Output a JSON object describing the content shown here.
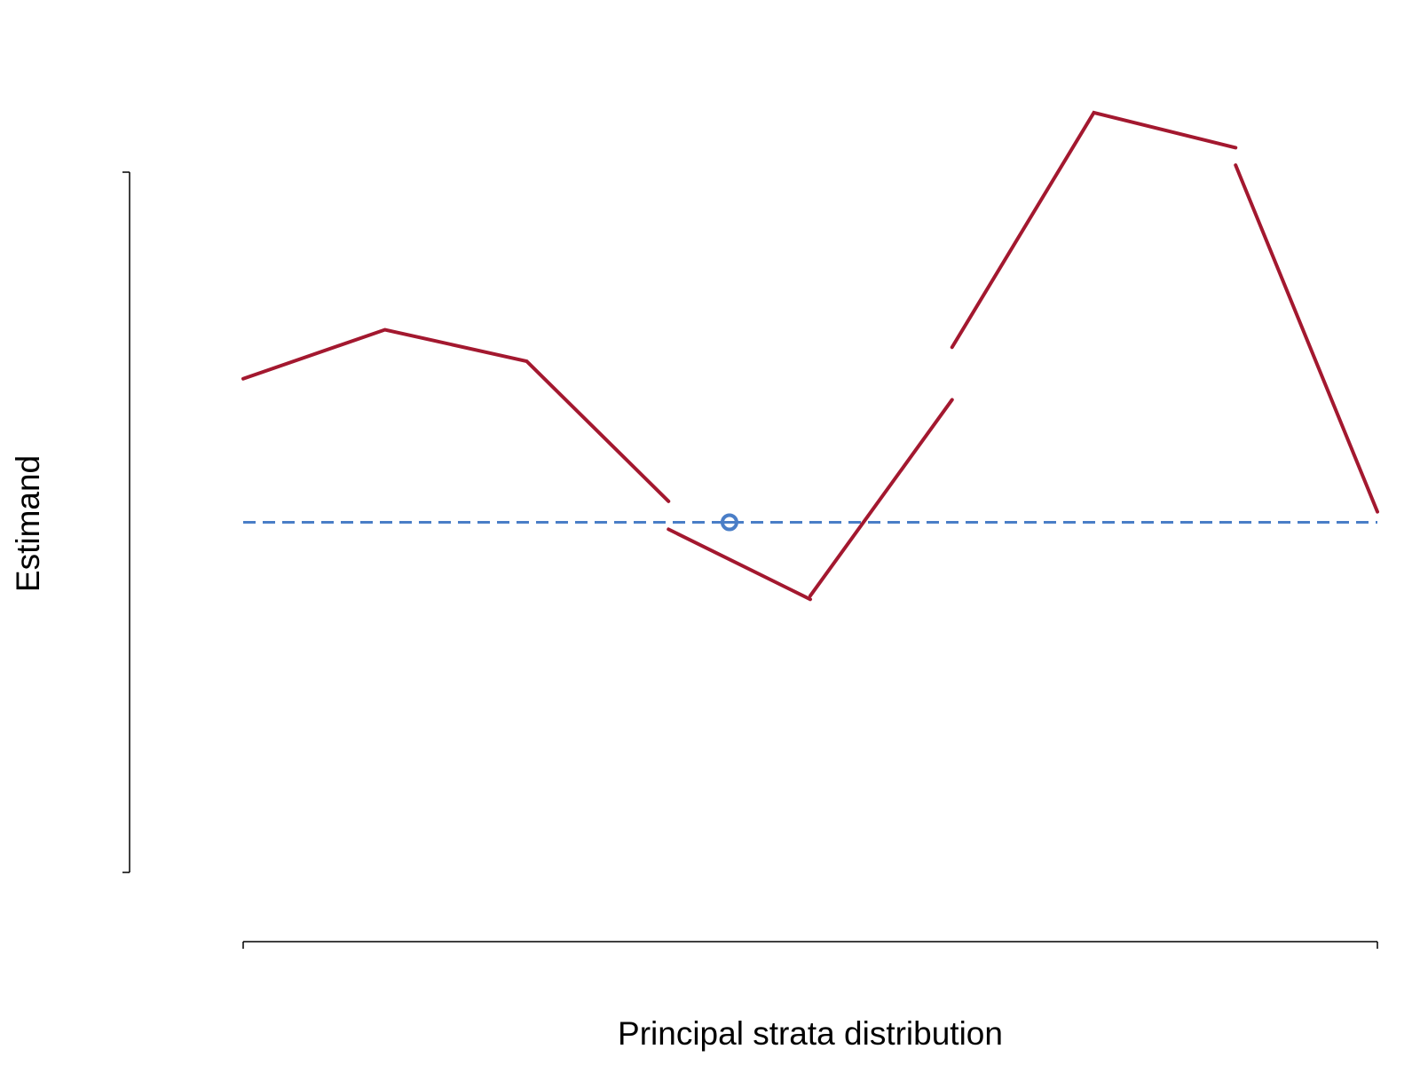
{
  "chart_data": {
    "type": "line",
    "title": "",
    "xlabel": "Principal strata distribution",
    "ylabel": "Estimand",
    "xlim": [
      1,
      9
    ],
    "ylim": [
      -1,
      1
    ],
    "grid": false,
    "legend": "none",
    "series": [
      {
        "color": "#A3182F",
        "style": "solid",
        "segments": [
          [
            [
              1,
              0.41
            ],
            [
              2,
              0.55
            ],
            [
              3,
              0.46
            ],
            [
              4,
              0.06
            ]
          ],
          [
            [
              4,
              -0.02
            ],
            [
              5,
              -0.22
            ]
          ],
          [
            [
              5,
              -0.21
            ],
            [
              6,
              0.35
            ]
          ],
          [
            [
              6,
              0.5
            ],
            [
              7,
              1.17
            ],
            [
              8,
              1.07
            ]
          ],
          [
            [
              8,
              1.02
            ],
            [
              9,
              0.03
            ]
          ]
        ]
      }
    ],
    "reference": {
      "y": 0,
      "color": "#4A7EC7",
      "style": "dashed",
      "marker_x": 4.43
    }
  }
}
